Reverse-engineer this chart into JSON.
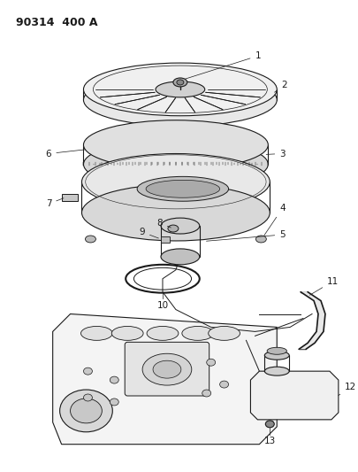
{
  "title": "90314  400 A",
  "bg_color": "#ffffff",
  "line_color": "#1a1a1a",
  "title_fontsize": 9,
  "label_fontsize": 7.5,
  "fig_w": 4.05,
  "fig_h": 5.33,
  "dpi": 100
}
